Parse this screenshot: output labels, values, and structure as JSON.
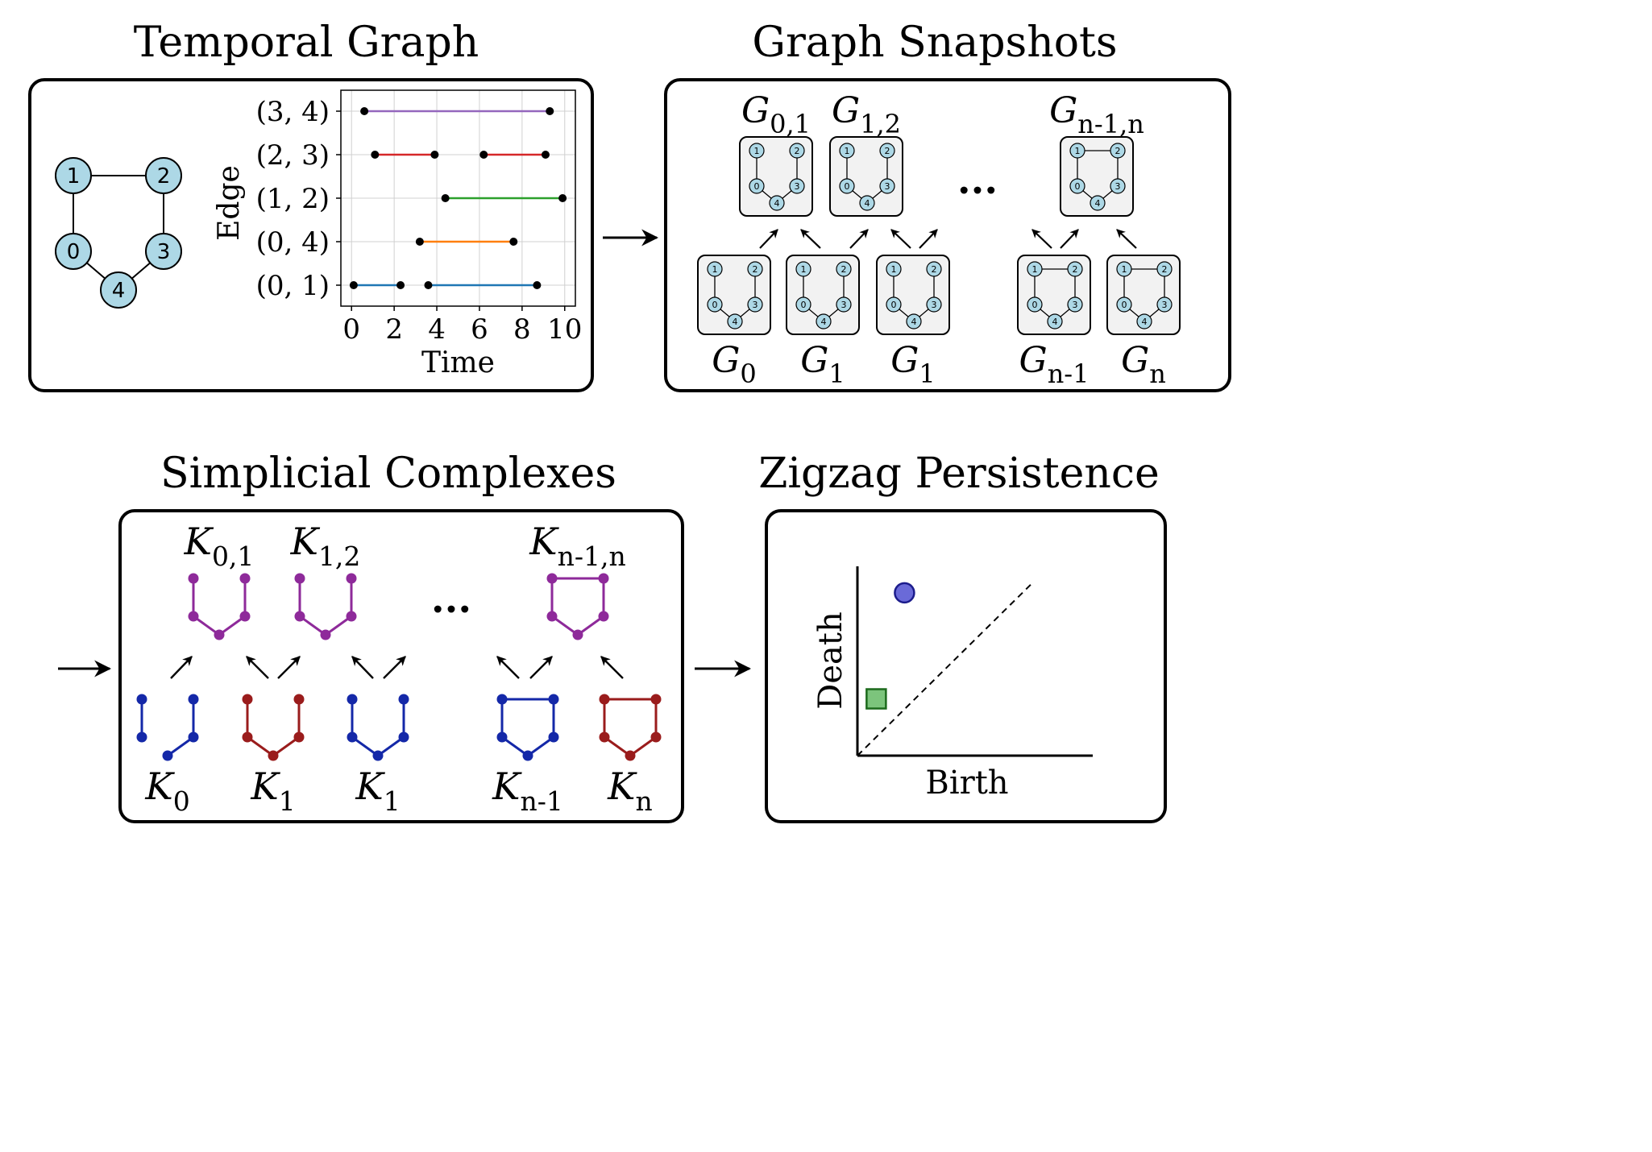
{
  "titles": {
    "temporal_graph": "Temporal Graph",
    "graph_snapshots": "Graph Snapshots",
    "simplicial_complexes": "Simplicial Complexes",
    "zigzag_persistence": "Zigzag Persistence"
  },
  "graph_nodes": [
    "1",
    "2",
    "0",
    "3",
    "4"
  ],
  "chart_data": {
    "type": "timeline",
    "xlabel": "Time",
    "ylabel": "Edge",
    "x_ticks": [
      "0",
      "2",
      "4",
      "6",
      "8",
      "10"
    ],
    "xlim": [
      -0.5,
      10.5
    ],
    "grid": true,
    "edges": [
      {
        "name": "(3, 4)",
        "color": "#9467bd",
        "intervals": [
          [
            0.6,
            9.3
          ]
        ]
      },
      {
        "name": "(2, 3)",
        "color": "#d62728",
        "intervals": [
          [
            1.1,
            3.9
          ],
          [
            6.2,
            9.1
          ]
        ]
      },
      {
        "name": "(1, 2)",
        "color": "#2ca02c",
        "intervals": [
          [
            4.4,
            9.9
          ]
        ]
      },
      {
        "name": "(0, 4)",
        "color": "#ff7f0e",
        "intervals": [
          [
            3.2,
            7.6
          ]
        ]
      },
      {
        "name": "(0, 1)",
        "color": "#1f77b4",
        "intervals": [
          [
            0.1,
            2.3
          ],
          [
            3.6,
            8.7
          ]
        ]
      }
    ]
  },
  "snapshots": {
    "top": [
      {
        "base": "G",
        "sub": "0,1"
      },
      {
        "base": "G",
        "sub": "1,2"
      },
      {
        "base": "G",
        "sub": "n-1,n"
      }
    ],
    "bottom": [
      {
        "base": "G",
        "sub": "0"
      },
      {
        "base": "G",
        "sub": "1"
      },
      {
        "base": "G",
        "sub": "1"
      },
      {
        "base": "G",
        "sub": "n-1"
      },
      {
        "base": "G",
        "sub": "n"
      }
    ],
    "ellipsis": "..."
  },
  "complexes": {
    "top": [
      {
        "base": "K",
        "sub": "0,1"
      },
      {
        "base": "K",
        "sub": "1,2"
      },
      {
        "base": "K",
        "sub": "n-1,n"
      }
    ],
    "bottom": [
      {
        "base": "K",
        "sub": "0"
      },
      {
        "base": "K",
        "sub": "1"
      },
      {
        "base": "K",
        "sub": "1"
      },
      {
        "base": "K",
        "sub": "n-1"
      },
      {
        "base": "K",
        "sub": "n"
      }
    ],
    "ellipsis": "...",
    "colors": {
      "purple": "#8e2a9a",
      "blue": "#1428a8",
      "red": "#9a1c1c"
    }
  },
  "persistence": {
    "xlabel": "Birth",
    "ylabel": "Death",
    "points": [
      {
        "shape": "circle",
        "color": "#6a6ad8",
        "birth": 0.2,
        "death": 0.86
      },
      {
        "shape": "square",
        "color": "#7cc47c",
        "birth": 0.08,
        "death": 0.3
      }
    ]
  },
  "colors": {
    "node_fill": "#add8e6",
    "panel_fill": "#f2f2f2"
  }
}
